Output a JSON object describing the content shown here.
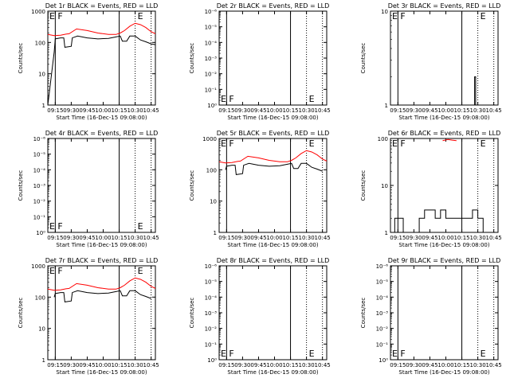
{
  "chart_data": [
    {
      "title": "Det 1r BLACK = Events, RED = LLD",
      "type": "line",
      "scale": "log",
      "ylim": [
        1,
        1000
      ],
      "ylabel": "Counts/sec",
      "xlabel": "Start Time (16-Dec-15 09:08:00)",
      "xlim": [
        "09:08",
        "10:49"
      ],
      "xticks": [
        "09:15",
        "09:30",
        "09:45",
        "10:00",
        "10:15",
        "10:30",
        "10:45"
      ],
      "yticks": [
        "1",
        "10",
        "100",
        "1000"
      ],
      "marker_lines": [
        {
          "time": "09:15",
          "style": "solid",
          "label": "F"
        },
        {
          "time": "10:15",
          "style": "solid",
          "label": ""
        },
        {
          "time": "10:30",
          "style": "dotted",
          "label": "E"
        },
        {
          "time": "10:45",
          "style": "dotted",
          "label": ""
        }
      ],
      "corner_label": "E",
      "series": [
        {
          "color": "red",
          "x": [
            "09:08",
            "09:14",
            "09:20",
            "09:25",
            "09:28",
            "09:35",
            "09:45",
            "09:55",
            "10:05",
            "10:12",
            "10:16",
            "10:20",
            "10:25",
            "10:30",
            "10:35",
            "10:40",
            "10:45",
            "10:49"
          ],
          "y": [
            180,
            165,
            170,
            185,
            190,
            270,
            240,
            200,
            180,
            180,
            200,
            240,
            330,
            410,
            370,
            300,
            220,
            190
          ]
        },
        {
          "color": "black",
          "x": [
            "09:08",
            "09:14",
            "09:15",
            "09:20",
            "09:23",
            "09:24",
            "09:30",
            "09:31",
            "09:36",
            "09:45",
            "09:55",
            "10:05",
            "10:12",
            "10:16",
            "10:18",
            "10:22",
            "10:25",
            "10:30",
            "10:35",
            "10:40",
            "10:45",
            "10:49"
          ],
          "y": [
            1,
            50,
            130,
            140,
            140,
            70,
            75,
            140,
            160,
            140,
            130,
            135,
            150,
            160,
            110,
            110,
            160,
            160,
            120,
            105,
            90,
            85
          ]
        }
      ]
    },
    {
      "title": "Det 2r BLACK = Events, RED = LLD",
      "type": "line",
      "scale": "log",
      "ylim": [
        1,
        1000000
      ],
      "ylabel": "Counts/sec",
      "xlabel": "Start Time (16-Dec-15 09:08:00)",
      "xlim": [
        "09:08",
        "10:49"
      ],
      "xticks": [
        "09:15",
        "09:30",
        "09:45",
        "10:00",
        "10:15",
        "10:30",
        "10:45"
      ],
      "yticks": [
        "10⁰",
        "10⁻¹",
        "10⁻²",
        "10⁻³",
        "10⁻⁴",
        "10⁻⁵",
        "10⁻⁶"
      ],
      "marker_lines": [
        {
          "time": "09:15",
          "style": "solid",
          "label": "F"
        },
        {
          "time": "10:15",
          "style": "solid",
          "label": ""
        },
        {
          "time": "10:30",
          "style": "dotted",
          "label": "E"
        },
        {
          "time": "10:45",
          "style": "dotted",
          "label": ""
        }
      ],
      "corner_label": "E",
      "series": []
    },
    {
      "title": "Det 3r BLACK = Events, RED = LLD",
      "type": "line",
      "scale": "log",
      "ylim": [
        1,
        10
      ],
      "ylabel": "Counts/sec",
      "xlabel": "Start Time (16-Dec-15 09:08:00)",
      "xlim": [
        "09:08",
        "10:49"
      ],
      "xticks": [
        "09:15",
        "09:30",
        "09:45",
        "10:00",
        "10:15",
        "10:30",
        "10:45"
      ],
      "yticks": [
        "1",
        "10"
      ],
      "marker_lines": [
        {
          "time": "09:15",
          "style": "solid",
          "label": "F"
        },
        {
          "time": "10:15",
          "style": "solid",
          "label": ""
        },
        {
          "time": "10:30",
          "style": "dotted",
          "label": "E"
        },
        {
          "time": "10:45",
          "style": "dotted",
          "label": ""
        }
      ],
      "corner_label": "E",
      "series": [
        {
          "color": "black",
          "x": [
            "10:27",
            "10:27",
            "10:28",
            "10:28"
          ],
          "y": [
            1,
            2,
            2,
            1
          ]
        }
      ]
    },
    {
      "title": "Det 4r BLACK = Events, RED = LLD",
      "type": "line",
      "scale": "log",
      "ylim": [
        1,
        1000000
      ],
      "ylabel": "Counts/sec",
      "xlabel": "Start Time (16-Dec-15 09:08:00)",
      "xlim": [
        "09:08",
        "10:49"
      ],
      "xticks": [
        "09:15",
        "09:30",
        "09:45",
        "10:00",
        "10:15",
        "10:30",
        "10:45"
      ],
      "yticks": [
        "10⁰",
        "10⁻¹",
        "10⁻²",
        "10⁻³",
        "10⁻⁴",
        "10⁻⁵",
        "10⁻⁶"
      ],
      "marker_lines": [
        {
          "time": "09:15",
          "style": "solid",
          "label": "F"
        },
        {
          "time": "10:15",
          "style": "solid",
          "label": ""
        },
        {
          "time": "10:30",
          "style": "dotted",
          "label": "E"
        },
        {
          "time": "10:45",
          "style": "dotted",
          "label": ""
        }
      ],
      "corner_label": "E",
      "series": []
    },
    {
      "title": "Det 5r BLACK = Events, RED = LLD",
      "type": "line",
      "scale": "log",
      "ylim": [
        1,
        1000
      ],
      "ylabel": "Counts/sec",
      "xlabel": "Start Time (16-Dec-15 09:08:00)",
      "xlim": [
        "09:08",
        "10:49"
      ],
      "xticks": [
        "09:15",
        "09:30",
        "09:45",
        "10:00",
        "10:15",
        "10:30",
        "10:45"
      ],
      "yticks": [
        "1",
        "10",
        "100",
        "1000"
      ],
      "marker_lines": [
        {
          "time": "09:15",
          "style": "solid",
          "label": "F"
        },
        {
          "time": "10:15",
          "style": "solid",
          "label": ""
        },
        {
          "time": "10:30",
          "style": "dotted",
          "label": "E"
        },
        {
          "time": "10:45",
          "style": "dotted",
          "label": ""
        }
      ],
      "corner_label": "E",
      "series": [
        {
          "color": "red",
          "x": [
            "09:08",
            "09:14",
            "09:20",
            "09:25",
            "09:28",
            "09:35",
            "09:45",
            "09:55",
            "10:05",
            "10:12",
            "10:16",
            "10:20",
            "10:25",
            "10:30",
            "10:35",
            "10:40",
            "10:45",
            "10:49"
          ],
          "y": [
            180,
            165,
            170,
            185,
            190,
            270,
            240,
            200,
            180,
            180,
            200,
            240,
            330,
            410,
            370,
            300,
            220,
            190
          ]
        },
        {
          "color": "black",
          "x": [
            "09:14",
            "09:15",
            "09:20",
            "09:23",
            "09:24",
            "09:30",
            "09:31",
            "09:36",
            "09:45",
            "09:55",
            "10:05",
            "10:12",
            "10:16",
            "10:18",
            "10:22",
            "10:25",
            "10:30",
            "10:35",
            "10:40",
            "10:45"
          ],
          "y": [
            100,
            130,
            140,
            140,
            70,
            75,
            140,
            160,
            140,
            130,
            135,
            150,
            160,
            110,
            110,
            160,
            160,
            120,
            105,
            90
          ]
        }
      ]
    },
    {
      "title": "Det 6r BLACK = Events, RED = LLD",
      "type": "line",
      "scale": "log",
      "ylim": [
        1,
        100
      ],
      "ylabel": "Counts/sec",
      "xlabel": "Start Time (16-Dec-15 09:08:00)",
      "xlim": [
        "09:08",
        "10:49"
      ],
      "xticks": [
        "09:15",
        "09:30",
        "09:45",
        "10:00",
        "10:15",
        "10:30",
        "10:45"
      ],
      "yticks": [
        "1",
        "10",
        "100"
      ],
      "marker_lines": [
        {
          "time": "09:15",
          "style": "solid",
          "label": "F"
        },
        {
          "time": "10:15",
          "style": "solid",
          "label": ""
        },
        {
          "time": "10:30",
          "style": "dotted",
          "label": "E"
        },
        {
          "time": "10:45",
          "style": "dotted",
          "label": ""
        }
      ],
      "corner_label": "E",
      "series": [
        {
          "color": "red",
          "x": [
            "09:57",
            "10:02",
            "10:06",
            "10:10"
          ],
          "y": [
            90,
            95,
            92,
            90
          ]
        },
        {
          "color": "black",
          "pattern": "noise",
          "x": [
            "09:08",
            "09:12",
            "09:20",
            "09:35",
            "09:40",
            "09:50",
            "09:55",
            "10:00",
            "10:10",
            "10:20",
            "10:25",
            "10:30",
            "10:35",
            "10:49"
          ],
          "y": [
            1,
            2,
            1,
            2,
            3,
            2,
            3,
            2,
            2,
            2,
            3,
            2,
            1,
            1
          ]
        }
      ]
    },
    {
      "title": "Det 7r BLACK = Events, RED = LLD",
      "type": "line",
      "scale": "log",
      "ylim": [
        1,
        1000
      ],
      "ylabel": "Counts/sec",
      "xlabel": "Start Time (16-Dec-15 09:08:00)",
      "xlim": [
        "09:08",
        "10:49"
      ],
      "xticks": [
        "09:15",
        "09:30",
        "09:45",
        "10:00",
        "10:15",
        "10:30",
        "10:45"
      ],
      "yticks": [
        "1",
        "10",
        "100",
        "1000"
      ],
      "marker_lines": [
        {
          "time": "09:15",
          "style": "solid",
          "label": "F"
        },
        {
          "time": "10:15",
          "style": "solid",
          "label": ""
        },
        {
          "time": "10:30",
          "style": "dotted",
          "label": "E"
        },
        {
          "time": "10:45",
          "style": "dotted",
          "label": ""
        }
      ],
      "corner_label": "E",
      "series": [
        {
          "color": "red",
          "x": [
            "09:08",
            "09:14",
            "09:20",
            "09:25",
            "09:28",
            "09:35",
            "09:45",
            "09:55",
            "10:05",
            "10:12",
            "10:16",
            "10:20",
            "10:25",
            "10:30",
            "10:35",
            "10:40",
            "10:45",
            "10:49"
          ],
          "y": [
            180,
            165,
            170,
            185,
            190,
            270,
            240,
            200,
            180,
            180,
            200,
            240,
            330,
            410,
            370,
            300,
            220,
            190
          ]
        },
        {
          "color": "black",
          "x": [
            "09:14",
            "09:15",
            "09:20",
            "09:23",
            "09:24",
            "09:30",
            "09:31",
            "09:36",
            "09:45",
            "09:55",
            "10:05",
            "10:12",
            "10:16",
            "10:18",
            "10:22",
            "10:25",
            "10:30",
            "10:35",
            "10:40",
            "10:45"
          ],
          "y": [
            100,
            130,
            140,
            140,
            70,
            75,
            140,
            160,
            140,
            130,
            135,
            150,
            160,
            110,
            110,
            160,
            160,
            120,
            105,
            90
          ]
        }
      ]
    },
    {
      "title": "Det 8r BLACK = Events, RED = LLD",
      "type": "line",
      "scale": "log",
      "ylim": [
        1,
        1000000
      ],
      "ylabel": "Counts/sec",
      "xlabel": "Start Time (16-Dec-15 09:08:00)",
      "xlim": [
        "09:08",
        "10:49"
      ],
      "xticks": [
        "09:15",
        "09:30",
        "09:45",
        "10:00",
        "10:15",
        "10:30",
        "10:45"
      ],
      "yticks": [
        "10⁰",
        "10⁻¹",
        "10⁻²",
        "10⁻³",
        "10⁻⁴",
        "10⁻⁵",
        "10⁻⁶"
      ],
      "marker_lines": [
        {
          "time": "09:15",
          "style": "solid",
          "label": "F"
        },
        {
          "time": "10:15",
          "style": "solid",
          "label": ""
        },
        {
          "time": "10:30",
          "style": "dotted",
          "label": "E"
        },
        {
          "time": "10:45",
          "style": "dotted",
          "label": ""
        }
      ],
      "corner_label": "E",
      "series": []
    },
    {
      "title": "Det 9r BLACK = Events, RED = LLD",
      "type": "line",
      "scale": "log",
      "ylim": [
        1,
        1000000
      ],
      "ylabel": "Counts/sec",
      "xlabel": "Start Time (16-Dec-15 09:08:00)",
      "xlim": [
        "09:08",
        "10:49"
      ],
      "xticks": [
        "09:15",
        "09:30",
        "09:45",
        "10:00",
        "10:15",
        "10:30",
        "10:45"
      ],
      "yticks": [
        "10⁰",
        "10⁻¹",
        "10⁻²",
        "10⁻³",
        "10⁻⁴",
        "10⁻⁵",
        "10⁻⁶"
      ],
      "marker_lines": [
        {
          "time": "09:15",
          "style": "solid",
          "label": "F"
        },
        {
          "time": "10:15",
          "style": "solid",
          "label": ""
        },
        {
          "time": "10:30",
          "style": "dotted",
          "label": "E"
        },
        {
          "time": "10:45",
          "style": "dotted",
          "label": ""
        }
      ],
      "corner_label": "E",
      "series": []
    }
  ]
}
